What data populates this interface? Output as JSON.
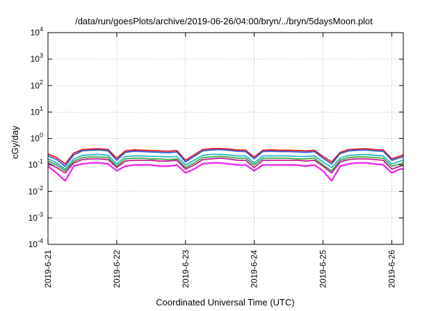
{
  "chart_data": {
    "type": "line",
    "title": "/data/run/goesPlots/archive/2019-06-26/04:00/bryn/../bryn/5daysMoon.plot",
    "xlabel": "Coordinated Universal Time (UTC)",
    "ylabel": "cGy/day",
    "y_scale": "log",
    "ylim": [
      0.0001,
      10000
    ],
    "y_ticks": [
      {
        "value": 0.0001,
        "base": "10",
        "exp": "-4"
      },
      {
        "value": 0.001,
        "base": "10",
        "exp": "-3"
      },
      {
        "value": 0.01,
        "base": "10",
        "exp": "-2"
      },
      {
        "value": 0.1,
        "base": "10",
        "exp": "-1"
      },
      {
        "value": 1,
        "base": "10",
        "exp": "0"
      },
      {
        "value": 10,
        "base": "10",
        "exp": "1"
      },
      {
        "value": 100,
        "base": "10",
        "exp": "2"
      },
      {
        "value": 1000,
        "base": "10",
        "exp": "3"
      },
      {
        "value": 10000,
        "base": "10",
        "exp": "4"
      }
    ],
    "x_ticks": [
      "2019-6-21",
      "2019-6-22",
      "2019-6-23",
      "2019-6-24",
      "2019-6-25",
      "2019-6-26"
    ],
    "xlim": [
      "2019-06-21T00:00",
      "2019-06-26T04:00"
    ],
    "grid": true,
    "x": [
      "2019-06-21T00:00",
      "2019-06-21T03:00",
      "2019-06-21T06:00",
      "2019-06-21T09:00",
      "2019-06-21T12:00",
      "2019-06-21T15:00",
      "2019-06-21T18:00",
      "2019-06-21T21:00",
      "2019-06-22T00:00",
      "2019-06-22T03:00",
      "2019-06-22T06:00",
      "2019-06-22T09:00",
      "2019-06-22T12:00",
      "2019-06-22T15:00",
      "2019-06-22T18:00",
      "2019-06-22T21:00",
      "2019-06-23T00:00",
      "2019-06-23T03:00",
      "2019-06-23T06:00",
      "2019-06-23T09:00",
      "2019-06-23T12:00",
      "2019-06-23T15:00",
      "2019-06-23T18:00",
      "2019-06-23T21:00",
      "2019-06-24T00:00",
      "2019-06-24T03:00",
      "2019-06-24T06:00",
      "2019-06-24T09:00",
      "2019-06-24T12:00",
      "2019-06-24T15:00",
      "2019-06-24T18:00",
      "2019-06-24T21:00",
      "2019-06-25T00:00",
      "2019-06-25T03:00",
      "2019-06-25T06:00",
      "2019-06-25T09:00",
      "2019-06-25T12:00",
      "2019-06-25T15:00",
      "2019-06-25T18:00",
      "2019-06-25T21:00",
      "2019-06-26T00:00",
      "2019-06-26T03:00",
      "2019-06-26T04:00"
    ],
    "series": [
      {
        "color": "#e8141c",
        "values": [
          0.26,
          0.19,
          0.11,
          0.28,
          0.38,
          0.4,
          0.41,
          0.38,
          0.18,
          0.34,
          0.37,
          0.36,
          0.35,
          0.34,
          0.33,
          0.35,
          0.15,
          0.24,
          0.38,
          0.41,
          0.42,
          0.4,
          0.37,
          0.36,
          0.2,
          0.36,
          0.37,
          0.36,
          0.36,
          0.35,
          0.34,
          0.36,
          0.21,
          0.13,
          0.3,
          0.38,
          0.4,
          0.41,
          0.38,
          0.37,
          0.17,
          0.22,
          0.24
        ]
      },
      {
        "color": "#2a5fd8",
        "values": [
          0.22,
          0.16,
          0.09,
          0.24,
          0.34,
          0.36,
          0.37,
          0.34,
          0.15,
          0.3,
          0.33,
          0.32,
          0.31,
          0.3,
          0.29,
          0.31,
          0.13,
          0.21,
          0.34,
          0.37,
          0.38,
          0.36,
          0.33,
          0.32,
          0.17,
          0.32,
          0.33,
          0.32,
          0.32,
          0.31,
          0.3,
          0.32,
          0.18,
          0.11,
          0.27,
          0.34,
          0.36,
          0.37,
          0.34,
          0.33,
          0.15,
          0.19,
          0.21
        ]
      },
      {
        "color": "#25b8c8",
        "values": [
          0.17,
          0.12,
          0.07,
          0.17,
          0.23,
          0.24,
          0.25,
          0.23,
          0.11,
          0.21,
          0.22,
          0.22,
          0.21,
          0.21,
          0.2,
          0.21,
          0.1,
          0.15,
          0.23,
          0.25,
          0.25,
          0.24,
          0.22,
          0.22,
          0.12,
          0.22,
          0.22,
          0.22,
          0.22,
          0.21,
          0.21,
          0.22,
          0.13,
          0.08,
          0.18,
          0.23,
          0.24,
          0.25,
          0.23,
          0.22,
          0.11,
          0.14,
          0.15
        ]
      },
      {
        "color": "#3fa63f",
        "values": [
          0.14,
          0.1,
          0.06,
          0.14,
          0.19,
          0.2,
          0.2,
          0.19,
          0.09,
          0.17,
          0.18,
          0.18,
          0.17,
          0.17,
          0.16,
          0.17,
          0.08,
          0.12,
          0.19,
          0.2,
          0.21,
          0.2,
          0.18,
          0.18,
          0.1,
          0.18,
          0.18,
          0.18,
          0.18,
          0.17,
          0.17,
          0.18,
          0.1,
          0.06,
          0.15,
          0.19,
          0.2,
          0.2,
          0.19,
          0.18,
          0.09,
          0.11,
          0.12
        ]
      },
      {
        "color": "#c01890",
        "values": [
          0.12,
          0.08,
          0.05,
          0.12,
          0.16,
          0.17,
          0.17,
          0.16,
          0.08,
          0.14,
          0.15,
          0.15,
          0.15,
          0.14,
          0.14,
          0.15,
          0.07,
          0.1,
          0.16,
          0.17,
          0.18,
          0.17,
          0.15,
          0.15,
          0.08,
          0.15,
          0.15,
          0.15,
          0.15,
          0.15,
          0.14,
          0.15,
          0.09,
          0.05,
          0.13,
          0.16,
          0.17,
          0.17,
          0.16,
          0.15,
          0.07,
          0.09,
          0.1
        ]
      },
      {
        "color": "#f01cf0",
        "values": [
          0.09,
          0.05,
          0.025,
          0.09,
          0.11,
          0.12,
          0.12,
          0.11,
          0.06,
          0.09,
          0.1,
          0.1,
          0.1,
          0.09,
          0.09,
          0.1,
          0.05,
          0.07,
          0.11,
          0.12,
          0.12,
          0.11,
          0.1,
          0.1,
          0.06,
          0.1,
          0.1,
          0.1,
          0.1,
          0.1,
          0.09,
          0.1,
          0.06,
          0.025,
          0.09,
          0.11,
          0.12,
          0.12,
          0.11,
          0.1,
          0.05,
          0.07,
          0.07
        ]
      }
    ]
  }
}
